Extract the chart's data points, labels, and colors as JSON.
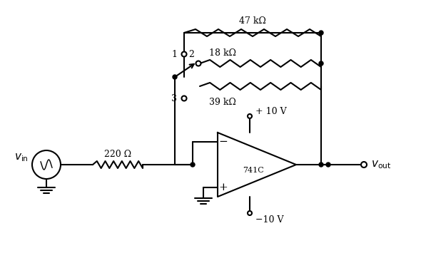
{
  "title": "",
  "background_color": "#ffffff",
  "line_color": "#000000",
  "line_width": 1.5,
  "resistor_47k_label": "47 kΩ",
  "resistor_18k_label": "18 kΩ",
  "resistor_39k_label": "39 kΩ",
  "resistor_220_label": "220 Ω",
  "opamp_label": "741C",
  "vplus_label": "+ 10 V",
  "vminus_label": "−10 V",
  "vin_label": "vₐᴵⁿ",
  "vout_label": "vₒᵁᵗ",
  "pos1_label": "1",
  "pos2_label": "2",
  "pos3_label": "3"
}
